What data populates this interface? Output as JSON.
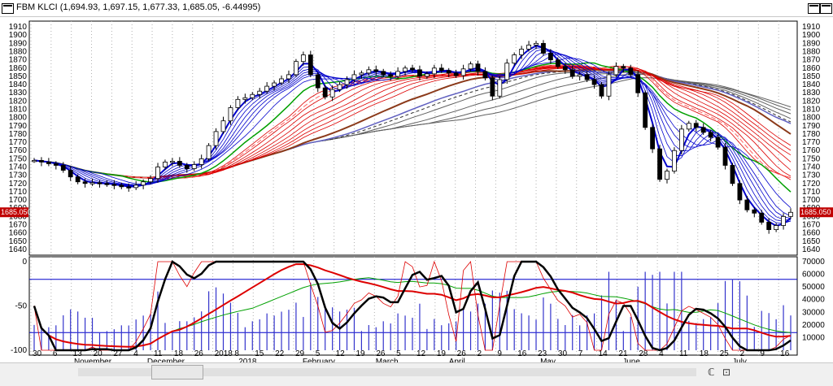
{
  "window": {
    "title": "FBM KLCI (1,694.93, 1,697.15, 1,677.33, 1,685.05, -6.44995)"
  },
  "price_axis": {
    "ticks": [
      "1910",
      "1900",
      "1890",
      "1880",
      "1870",
      "1860",
      "1850",
      "1840",
      "1830",
      "1820",
      "1810",
      "1800",
      "1790",
      "1780",
      "1770",
      "1760",
      "1750",
      "1740",
      "1730",
      "1720",
      "1710",
      "1700",
      "1690",
      "1680",
      "1670",
      "1660",
      "1650",
      "1640"
    ],
    "last_price_label": "1685.050",
    "last_price_color": "#c00000"
  },
  "indicator_axis": {
    "left_ticks": [
      "0",
      "-50",
      "-100"
    ],
    "right_ticks": [
      "70000",
      "60000",
      "50000",
      "40000",
      "30000",
      "20000",
      "10000"
    ]
  },
  "date_axis": {
    "day_labels": [
      "30",
      "6",
      "13",
      "20",
      "27",
      "4",
      "11",
      "18",
      "26",
      "2018",
      "8",
      "15",
      "22",
      "29",
      "5",
      "12",
      "19",
      "26",
      "5",
      "12",
      "19",
      "26",
      "2",
      "9",
      "16",
      "23",
      "30",
      "7",
      "14",
      "21",
      "28",
      "4",
      "11",
      "18",
      "25",
      "2",
      "9",
      "16"
    ],
    "month_labels": [
      "November",
      "December",
      "2018",
      "February",
      "March",
      "April",
      "May",
      "June",
      "July"
    ]
  },
  "colors": {
    "up_candle": "#ffffff",
    "down_candle": "#000000",
    "blue_ma": "#0000cc",
    "green_ma": "#00a000",
    "red_ma": "#dd0000",
    "brown_ma": "#8b3a1a",
    "grey_ma": "#404040",
    "volume": "#3333cc",
    "stoch_fast": "#000000",
    "stoch_slow": "#dd0000"
  },
  "bottom_controls": {
    "mode_glyph": "ℂ",
    "calendar_glyph": "⊡"
  },
  "chart_data": {
    "type": "candlestick",
    "title": "FBM KLCI",
    "ylim": [
      1635,
      1915
    ],
    "ohlc_last": {
      "open": 1694.93,
      "high": 1697.15,
      "low": 1677.33,
      "close": 1685.05,
      "change": -6.44995
    },
    "close_series": [
      1748,
      1746,
      1744,
      1742,
      1736,
      1728,
      1722,
      1720,
      1721,
      1720,
      1719,
      1718,
      1716,
      1715,
      1718,
      1722,
      1726,
      1740,
      1746,
      1747,
      1742,
      1738,
      1743,
      1750,
      1766,
      1783,
      1796,
      1812,
      1822,
      1824,
      1828,
      1832,
      1838,
      1842,
      1847,
      1852,
      1868,
      1876,
      1852,
      1836,
      1825,
      1834,
      1840,
      1846,
      1852,
      1854,
      1858,
      1856,
      1852,
      1850,
      1856,
      1860,
      1858,
      1850,
      1853,
      1860,
      1857,
      1854,
      1851,
      1859,
      1865,
      1856,
      1848,
      1826,
      1846,
      1866,
      1876,
      1883,
      1888,
      1890,
      1878,
      1870,
      1862,
      1858,
      1850,
      1852,
      1846,
      1840,
      1826,
      1852,
      1862,
      1860,
      1852,
      1830,
      1788,
      1762,
      1725,
      1735,
      1760,
      1786,
      1793,
      1788,
      1782,
      1776,
      1764,
      1742,
      1720,
      1700,
      1688,
      1684,
      1673,
      1664,
      1669,
      1680,
      1685
    ],
    "indicator": {
      "type": "stochastic",
      "ylim": [
        -100,
        0
      ],
      "upper_band": -20,
      "lower_band": -80
    },
    "volume_ylim": [
      0,
      70000
    ]
  }
}
